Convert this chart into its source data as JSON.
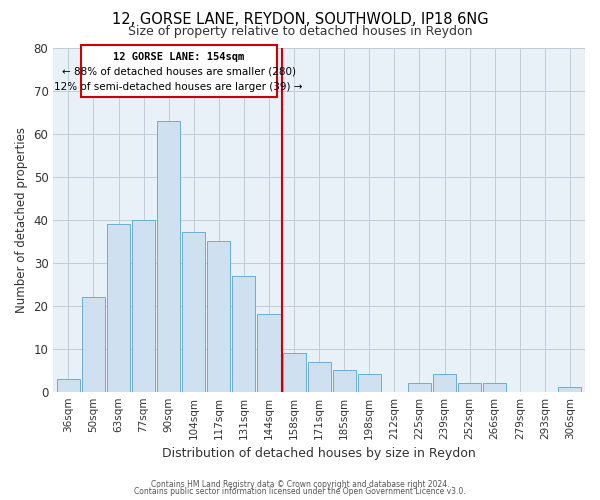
{
  "title": "12, GORSE LANE, REYDON, SOUTHWOLD, IP18 6NG",
  "subtitle": "Size of property relative to detached houses in Reydon",
  "xlabel": "Distribution of detached houses by size in Reydon",
  "ylabel": "Number of detached properties",
  "bar_labels": [
    "36sqm",
    "50sqm",
    "63sqm",
    "77sqm",
    "90sqm",
    "104sqm",
    "117sqm",
    "131sqm",
    "144sqm",
    "158sqm",
    "171sqm",
    "185sqm",
    "198sqm",
    "212sqm",
    "225sqm",
    "239sqm",
    "252sqm",
    "266sqm",
    "279sqm",
    "293sqm",
    "306sqm"
  ],
  "bar_values": [
    3,
    22,
    39,
    40,
    63,
    37,
    35,
    27,
    18,
    9,
    7,
    5,
    4,
    0,
    2,
    4,
    2,
    2,
    0,
    0,
    1
  ],
  "bar_color": "#cfe0f0",
  "bar_edge_color": "#6aaed6",
  "vline_color": "#cc0000",
  "annotation_title": "12 GORSE LANE: 154sqm",
  "annotation_line1": "← 88% of detached houses are smaller (280)",
  "annotation_line2": "12% of semi-detached houses are larger (39) →",
  "annotation_box_color": "#ffffff",
  "annotation_box_edge": "#cc0000",
  "ylim": [
    0,
    80
  ],
  "yticks": [
    0,
    10,
    20,
    30,
    40,
    50,
    60,
    70,
    80
  ],
  "footer1": "Contains HM Land Registry data © Crown copyright and database right 2024.",
  "footer2": "Contains public sector information licensed under the Open Government Licence v3.0.",
  "bg_color": "#ffffff",
  "plot_bg_color": "#e8f0f8",
  "grid_color": "#c0ccd8"
}
